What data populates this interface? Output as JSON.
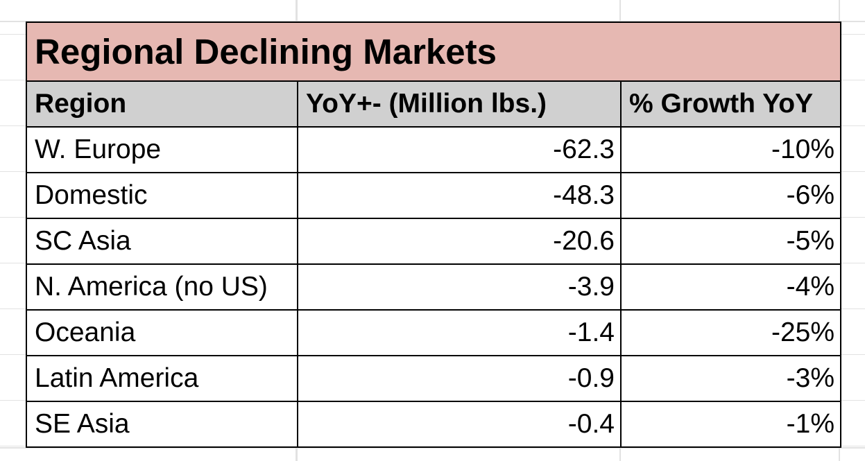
{
  "chart_data": {
    "type": "table",
    "title": "Regional Declining Markets",
    "columns": [
      "Region",
      "YoY+- (Million lbs.)",
      "% Growth YoY"
    ],
    "rows": [
      {
        "region": "W. Europe",
        "yoy": "-62.3",
        "growth": "-10%"
      },
      {
        "region": "Domestic",
        "yoy": "-48.3",
        "growth": "-6%"
      },
      {
        "region": "SC Asia",
        "yoy": "-20.6",
        "growth": "-5%"
      },
      {
        "region": "N. America (no US)",
        "yoy": "-3.9",
        "growth": "-4%"
      },
      {
        "region": "Oceania",
        "yoy": "-1.4",
        "growth": "-25%"
      },
      {
        "region": "Latin America",
        "yoy": "-0.9",
        "growth": "-3%"
      },
      {
        "region": "SE Asia",
        "yoy": "-0.4",
        "growth": "-1%"
      }
    ]
  },
  "colors": {
    "title_fill": "#e6b8b2",
    "header_fill": "#d0d0d0",
    "border": "#000000",
    "gridline": "#e2e2e2"
  }
}
